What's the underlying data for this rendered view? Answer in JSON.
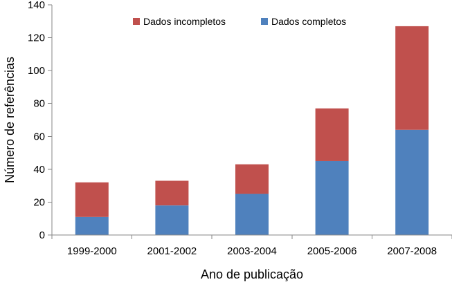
{
  "chart_data": {
    "type": "bar",
    "stacked": true,
    "categories": [
      "1999-2000",
      "2001-2002",
      "2003-2004",
      "2005-2006",
      "2007-2008"
    ],
    "series": [
      {
        "name": "Dados completos",
        "color": "#4f81bd",
        "values": [
          11,
          18,
          25,
          45,
          64
        ]
      },
      {
        "name": "Dados incompletos",
        "color": "#c0504d",
        "values": [
          21,
          15,
          18,
          32,
          63
        ]
      }
    ],
    "xlabel": "Ano de publicação",
    "ylabel": "Número de referências",
    "ylim": [
      0,
      140
    ],
    "yticks": [
      0,
      20,
      40,
      60,
      80,
      100,
      120,
      140
    ],
    "grid": false,
    "legend": {
      "position": "top",
      "order": [
        "Dados incompletos",
        "Dados completos"
      ]
    }
  }
}
